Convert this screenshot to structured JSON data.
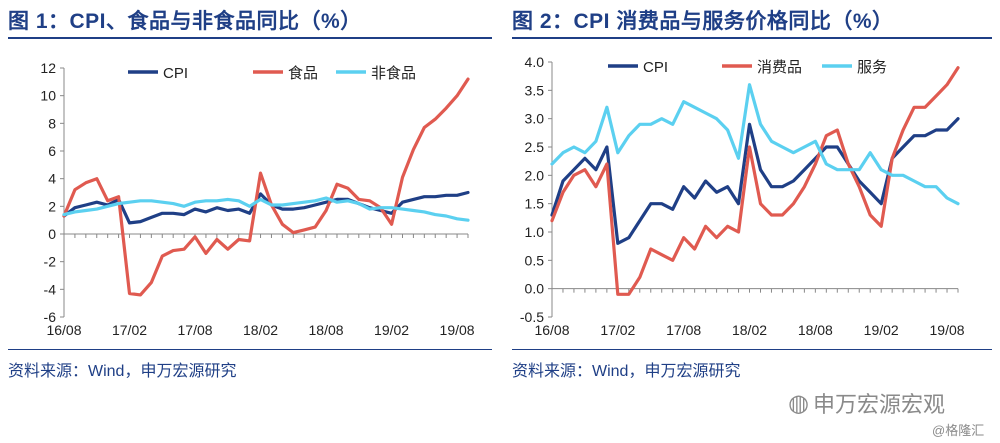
{
  "charts": [
    {
      "title": "图 1：CPI、食品与非食品同比（%）",
      "source": "资料来源：Wind，申万宏源研究"
    },
    {
      "title": "图 2：CPI 消费品与服务价格同比（%）",
      "source": "资料来源：Wind，申万宏源研究"
    }
  ],
  "watermark": {
    "main": "申万宏源宏观",
    "sub": "@格隆汇",
    "icon": "wechat-icon"
  },
  "chart_data": [
    {
      "type": "line",
      "title": "",
      "x_tick_labels": [
        "16/08",
        "17/02",
        "17/08",
        "18/02",
        "18/08",
        "19/02",
        "19/08"
      ],
      "x": [
        "16/08",
        "16/09",
        "16/10",
        "16/11",
        "16/12",
        "17/01",
        "17/02",
        "17/03",
        "17/04",
        "17/05",
        "17/06",
        "17/07",
        "17/08",
        "17/09",
        "17/10",
        "17/11",
        "17/12",
        "18/01",
        "18/02",
        "18/03",
        "18/04",
        "18/05",
        "18/06",
        "18/07",
        "18/08",
        "18/09",
        "18/10",
        "18/11",
        "18/12",
        "19/01",
        "19/02",
        "19/03",
        "19/04",
        "19/05",
        "19/06",
        "19/07",
        "19/08",
        "19/09"
      ],
      "ylim": [
        -6,
        12
      ],
      "yticks": [
        -6,
        -4,
        -2,
        0,
        2,
        4,
        6,
        8,
        10,
        12
      ],
      "legend_position": "top",
      "series": [
        {
          "name": "CPI",
          "color": "#1f3f86",
          "values": [
            1.3,
            1.9,
            2.1,
            2.3,
            2.1,
            2.5,
            0.8,
            0.9,
            1.2,
            1.5,
            1.5,
            1.4,
            1.8,
            1.6,
            1.9,
            1.7,
            1.8,
            1.5,
            2.9,
            2.1,
            1.8,
            1.8,
            1.9,
            2.1,
            2.3,
            2.5,
            2.5,
            2.2,
            1.9,
            1.7,
            1.5,
            2.3,
            2.5,
            2.7,
            2.7,
            2.8,
            2.8,
            3.0
          ]
        },
        {
          "name": "食品",
          "color": "#e05a50",
          "values": [
            1.3,
            3.2,
            3.7,
            4.0,
            2.4,
            2.7,
            -4.3,
            -4.4,
            -3.5,
            -1.6,
            -1.2,
            -1.1,
            -0.2,
            -1.4,
            -0.4,
            -1.1,
            -0.4,
            -0.5,
            4.4,
            2.1,
            0.7,
            0.1,
            0.3,
            0.5,
            1.7,
            3.6,
            3.3,
            2.5,
            2.4,
            1.9,
            0.7,
            4.1,
            6.1,
            7.7,
            8.3,
            9.1,
            10.0,
            11.2
          ]
        },
        {
          "name": "非食品",
          "color": "#5bd0f0",
          "values": [
            1.4,
            1.6,
            1.7,
            1.8,
            2.0,
            2.2,
            2.3,
            2.4,
            2.4,
            2.3,
            2.2,
            2.0,
            2.3,
            2.4,
            2.4,
            2.5,
            2.4,
            2.0,
            2.5,
            2.1,
            2.1,
            2.2,
            2.3,
            2.4,
            2.6,
            2.3,
            2.4,
            2.2,
            1.8,
            1.9,
            1.9,
            1.8,
            1.7,
            1.6,
            1.4,
            1.3,
            1.1,
            1.0
          ]
        }
      ]
    },
    {
      "type": "line",
      "title": "",
      "x_tick_labels": [
        "16/08",
        "17/02",
        "17/08",
        "18/02",
        "18/08",
        "19/02",
        "19/08"
      ],
      "x": [
        "16/08",
        "16/09",
        "16/10",
        "16/11",
        "16/12",
        "17/01",
        "17/02",
        "17/03",
        "17/04",
        "17/05",
        "17/06",
        "17/07",
        "17/08",
        "17/09",
        "17/10",
        "17/11",
        "17/12",
        "18/01",
        "18/02",
        "18/03",
        "18/04",
        "18/05",
        "18/06",
        "18/07",
        "18/08",
        "18/09",
        "18/10",
        "18/11",
        "18/12",
        "19/01",
        "19/02",
        "19/03",
        "19/04",
        "19/05",
        "19/06",
        "19/07",
        "19/08",
        "19/09"
      ],
      "ylim": [
        -0.5,
        4.0
      ],
      "yticks": [
        -0.5,
        0.0,
        0.5,
        1.0,
        1.5,
        2.0,
        2.5,
        3.0,
        3.5,
        4.0
      ],
      "legend_position": "top",
      "series": [
        {
          "name": "CPI",
          "color": "#1f3f86",
          "values": [
            1.3,
            1.9,
            2.1,
            2.3,
            2.1,
            2.5,
            0.8,
            0.9,
            1.2,
            1.5,
            1.5,
            1.4,
            1.8,
            1.6,
            1.9,
            1.7,
            1.8,
            1.5,
            2.9,
            2.1,
            1.8,
            1.8,
            1.9,
            2.1,
            2.3,
            2.5,
            2.5,
            2.2,
            1.9,
            1.7,
            1.5,
            2.3,
            2.5,
            2.7,
            2.7,
            2.8,
            2.8,
            3.0
          ]
        },
        {
          "name": "消费品",
          "color": "#e05a50",
          "values": [
            1.2,
            1.7,
            2.0,
            2.1,
            1.8,
            2.2,
            -0.1,
            -0.1,
            0.2,
            0.7,
            0.6,
            0.5,
            0.9,
            0.7,
            1.1,
            0.9,
            1.1,
            1.0,
            2.5,
            1.5,
            1.3,
            1.3,
            1.5,
            1.8,
            2.2,
            2.7,
            2.8,
            2.2,
            1.8,
            1.3,
            1.1,
            2.3,
            2.8,
            3.2,
            3.2,
            3.4,
            3.6,
            3.9
          ]
        },
        {
          "name": "服务",
          "color": "#5bd0f0",
          "values": [
            2.2,
            2.4,
            2.5,
            2.4,
            2.6,
            3.2,
            2.4,
            2.7,
            2.9,
            2.9,
            3.0,
            2.9,
            3.3,
            3.2,
            3.1,
            3.0,
            2.8,
            2.3,
            3.6,
            2.9,
            2.6,
            2.5,
            2.4,
            2.5,
            2.6,
            2.2,
            2.1,
            2.1,
            2.1,
            2.4,
            2.1,
            2.0,
            2.0,
            1.9,
            1.8,
            1.8,
            1.6,
            1.5
          ]
        }
      ]
    }
  ]
}
